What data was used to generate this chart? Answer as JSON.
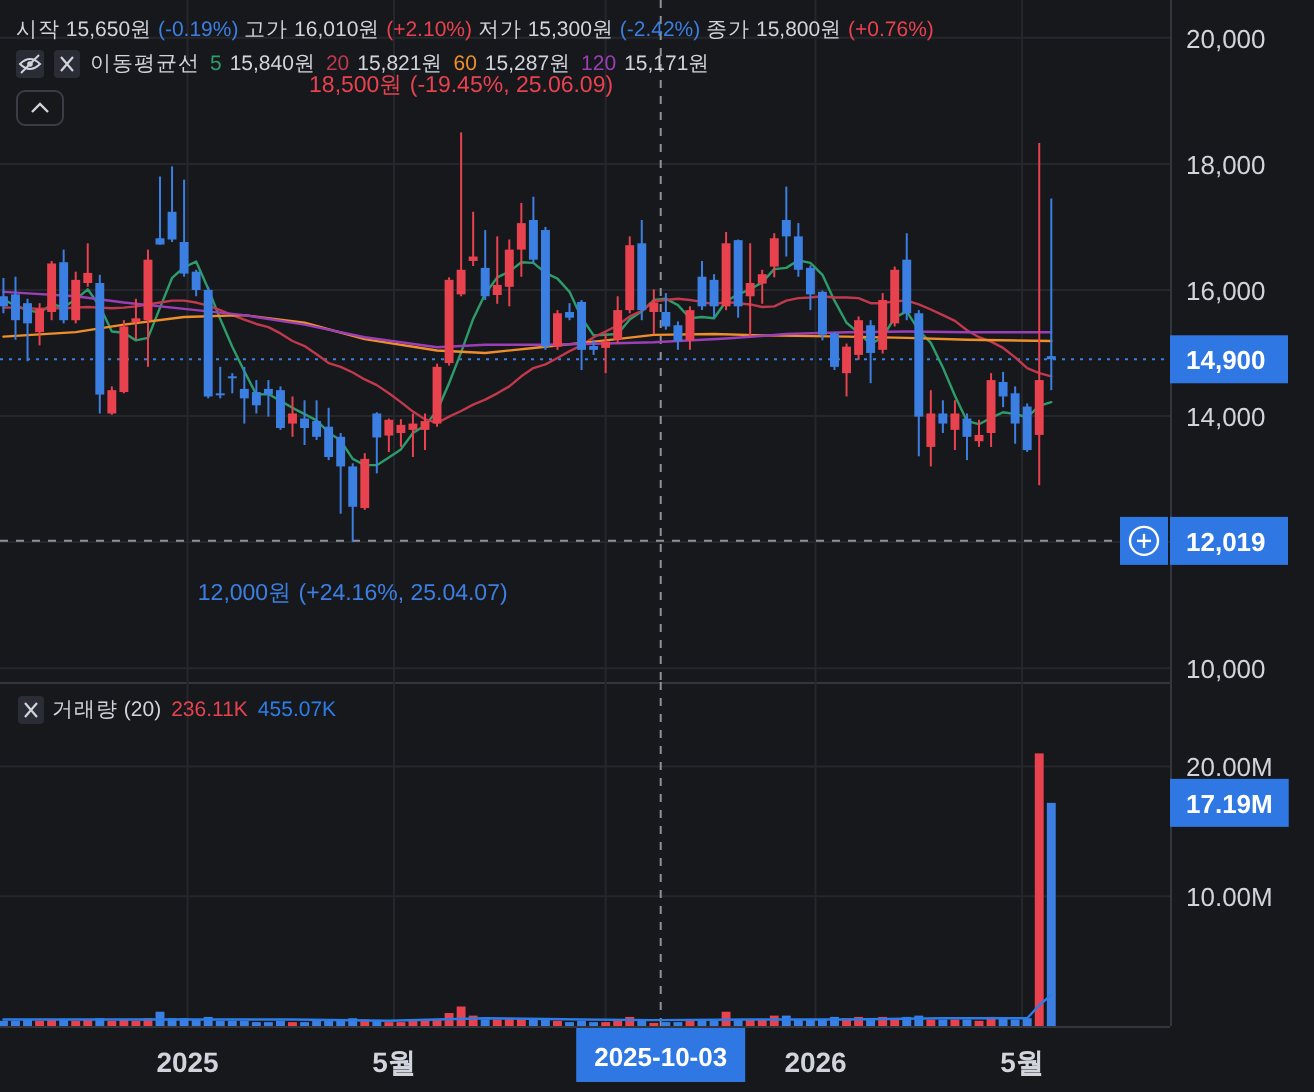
{
  "chart_data": [
    {
      "type": "candlestick",
      "subtitle": "시작 15,650원 (-0.19%) 고가 16,010원 (+2.10%) 저가 15,300원 (-2.42%) 종가 15,800원 (+0.76%)",
      "legend_title": "이동평균선",
      "legend": "top left",
      "grid": true,
      "tick_labels": "y",
      "xlim": [
        "2024-09-14",
        "2026-07-26"
      ],
      "ylim": [
        9780,
        20600
      ],
      "xticks": [
        {
          "value": "2025-01-01",
          "label": null
        },
        {
          "value": "2025-05-01",
          "label": null
        },
        {
          "value": "2025-09-01",
          "label": null
        },
        {
          "value": "2026-01-01",
          "label": null
        },
        {
          "value": "2026-05-01",
          "label": null
        }
      ],
      "yticks": [
        {
          "value": 10000,
          "label": "10,000"
        },
        {
          "value": 12000,
          "label": null
        },
        {
          "value": 14000,
          "label": "14,000"
        },
        {
          "value": 16000,
          "label": "16,000"
        },
        {
          "value": 18000,
          "label": "18,000"
        },
        {
          "value": 20000,
          "label": "20,000"
        }
      ],
      "x": [
        "2024-09-16",
        "2024-09-23",
        "2024-09-30",
        "2024-10-07",
        "2024-10-14",
        "2024-10-21",
        "2024-10-28",
        "2024-11-04",
        "2024-11-11",
        "2024-11-18",
        "2024-11-25",
        "2024-12-02",
        "2024-12-09",
        "2024-12-16",
        "2024-12-23",
        "2024-12-30",
        "2025-01-06",
        "2025-01-13",
        "2025-01-20",
        "2025-01-27",
        "2025-02-03",
        "2025-02-10",
        "2025-02-17",
        "2025-02-24",
        "2025-03-03",
        "2025-03-10",
        "2025-03-17",
        "2025-03-24",
        "2025-03-31",
        "2025-04-07",
        "2025-04-14",
        "2025-04-21",
        "2025-04-28",
        "2025-05-05",
        "2025-05-12",
        "2025-05-19",
        "2025-05-26",
        "2025-06-02",
        "2025-06-09",
        "2025-06-16",
        "2025-06-23",
        "2025-06-30",
        "2025-07-07",
        "2025-07-14",
        "2025-07-21",
        "2025-07-28",
        "2025-08-04",
        "2025-08-11",
        "2025-08-18",
        "2025-08-25",
        "2025-09-01",
        "2025-09-08",
        "2025-09-15",
        "2025-09-22",
        "2025-09-29",
        "2025-10-06",
        "2025-10-13",
        "2025-10-20",
        "2025-10-27",
        "2025-11-03",
        "2025-11-10",
        "2025-11-17",
        "2025-11-24",
        "2025-12-01",
        "2025-12-08",
        "2025-12-15",
        "2025-12-22",
        "2025-12-29",
        "2026-01-05",
        "2026-01-12",
        "2026-01-19",
        "2026-01-26",
        "2026-02-02",
        "2026-02-09",
        "2026-02-16",
        "2026-02-23",
        "2026-03-02",
        "2026-03-09",
        "2026-03-16",
        "2026-03-23",
        "2026-03-30",
        "2026-04-06",
        "2026-04-13",
        "2026-04-20",
        "2026-04-27",
        "2026-05-04",
        "2026-05-11",
        "2026-05-18"
      ],
      "ohlc": [
        [
          15900,
          16190,
          15630,
          15740
        ],
        [
          15930,
          16210,
          15210,
          15520
        ],
        [
          15790,
          15860,
          14870,
          15470
        ],
        [
          15330,
          15790,
          15120,
          15700
        ],
        [
          15650,
          16460,
          15520,
          16420
        ],
        [
          16440,
          16640,
          15470,
          15520
        ],
        [
          15520,
          16290,
          15470,
          16160
        ],
        [
          16110,
          16740,
          16050,
          16270
        ],
        [
          16110,
          16240,
          14040,
          14340
        ],
        [
          14040,
          14470,
          14020,
          14410
        ],
        [
          14380,
          15520,
          14360,
          15420
        ],
        [
          15490,
          15860,
          15210,
          15550
        ],
        [
          15520,
          16640,
          14780,
          16480
        ],
        [
          16820,
          17800,
          16720,
          16720
        ],
        [
          17240,
          17960,
          16760,
          16800
        ],
        [
          16760,
          17750,
          16210,
          16260
        ],
        [
          16290,
          16320,
          15900,
          16000
        ],
        [
          16000,
          16050,
          14280,
          14310
        ],
        [
          14360,
          14780,
          14280,
          14340
        ],
        [
          14630,
          14680,
          14360,
          14600
        ],
        [
          14430,
          14780,
          13880,
          14280
        ],
        [
          14380,
          14570,
          14040,
          14170
        ],
        [
          14430,
          14570,
          13990,
          14340
        ],
        [
          14410,
          14470,
          13780,
          13810
        ],
        [
          13880,
          14310,
          13670,
          14040
        ],
        [
          13960,
          14250,
          13540,
          13810
        ],
        [
          13920,
          14250,
          13620,
          13670
        ],
        [
          13830,
          14130,
          13300,
          13350
        ],
        [
          13670,
          13730,
          12450,
          13200
        ],
        [
          13200,
          13250,
          12000,
          12560
        ],
        [
          12540,
          13410,
          12510,
          13320
        ],
        [
          14040,
          14060,
          13090,
          13660
        ],
        [
          13690,
          13960,
          13430,
          13940
        ],
        [
          13730,
          13950,
          13510,
          13860
        ],
        [
          13780,
          14040,
          13350,
          13880
        ],
        [
          13780,
          14040,
          13460,
          13920
        ],
        [
          13880,
          14830,
          13830,
          14780
        ],
        [
          14840,
          16200,
          14800,
          16160
        ],
        [
          15930,
          18500,
          15900,
          16320
        ],
        [
          16460,
          17240,
          16380,
          16530
        ],
        [
          16350,
          16950,
          15840,
          15900
        ],
        [
          15920,
          16850,
          15780,
          16080
        ],
        [
          16050,
          16800,
          15740,
          16640
        ],
        [
          16640,
          17380,
          16210,
          17060
        ],
        [
          17110,
          17480,
          16420,
          16480
        ],
        [
          16950,
          17000,
          15050,
          15100
        ],
        [
          15100,
          15680,
          15050,
          15630
        ],
        [
          15650,
          15790,
          15520,
          15560
        ],
        [
          15810,
          15840,
          14730,
          15050
        ],
        [
          15110,
          15210,
          14970,
          15050
        ],
        [
          15080,
          15310,
          14680,
          15180
        ],
        [
          15210,
          15900,
          15150,
          15680
        ],
        [
          15680,
          16850,
          15630,
          16710
        ],
        [
          16740,
          17110,
          15520,
          15680
        ],
        [
          15650,
          16010,
          15300,
          15800
        ],
        [
          15650,
          15950,
          15370,
          15420
        ],
        [
          15440,
          15500,
          15050,
          15190
        ],
        [
          15200,
          15740,
          15050,
          15680
        ],
        [
          16210,
          16460,
          15680,
          15740
        ],
        [
          16160,
          16250,
          15560,
          15740
        ],
        [
          15740,
          16920,
          15680,
          16740
        ],
        [
          16790,
          16800,
          15560,
          15740
        ],
        [
          15900,
          16740,
          15260,
          16110
        ],
        [
          16100,
          16320,
          15780,
          16250
        ],
        [
          16370,
          16900,
          16200,
          16820
        ],
        [
          17110,
          17640,
          16530,
          16850
        ],
        [
          16850,
          17060,
          16210,
          16320
        ],
        [
          16350,
          16390,
          15680,
          15930
        ],
        [
          15970,
          15990,
          15200,
          15290
        ],
        [
          15310,
          15330,
          14730,
          14780
        ],
        [
          14680,
          15150,
          14310,
          15100
        ],
        [
          14970,
          15580,
          14890,
          15520
        ],
        [
          15440,
          15520,
          14520,
          15000
        ],
        [
          15050,
          15950,
          14990,
          15840
        ],
        [
          15470,
          16370,
          15420,
          16320
        ],
        [
          16480,
          16900,
          15520,
          15630
        ],
        [
          15630,
          15680,
          13360,
          13990
        ],
        [
          13510,
          14410,
          13200,
          14040
        ],
        [
          14040,
          14250,
          13730,
          13880
        ],
        [
          13780,
          14250,
          13460,
          14040
        ],
        [
          13960,
          14040,
          13300,
          13670
        ],
        [
          13600,
          13940,
          13510,
          13700
        ],
        [
          13730,
          14680,
          13510,
          14570
        ],
        [
          14540,
          14700,
          14140,
          14310
        ],
        [
          14360,
          14470,
          13560,
          13880
        ],
        [
          14150,
          14200,
          13430,
          13460
        ],
        [
          13700,
          18330,
          12900,
          14570
        ],
        [
          14950,
          17450,
          14410,
          14900
        ]
      ],
      "colors": [
        "#3c7fe2",
        "#3c7fe2",
        "#3c7fe2",
        "#e8424f",
        "#e8424f",
        "#3c7fe2",
        "#e8424f",
        "#e8424f",
        "#3c7fe2",
        "#e8424f",
        "#e8424f",
        "#e8424f",
        "#e8424f",
        "#3c7fe2",
        "#3c7fe2",
        "#3c7fe2",
        "#3c7fe2",
        "#3c7fe2",
        "#3c7fe2",
        "#3c7fe2",
        "#3c7fe2",
        "#3c7fe2",
        "#3c7fe2",
        "#3c7fe2",
        "#e8424f",
        "#3c7fe2",
        "#3c7fe2",
        "#3c7fe2",
        "#3c7fe2",
        "#3c7fe2",
        "#e8424f",
        "#3c7fe2",
        "#e8424f",
        "#e8424f",
        "#e8424f",
        "#e8424f",
        "#e8424f",
        "#e8424f",
        "#e8424f",
        "#e8424f",
        "#3c7fe2",
        "#e8424f",
        "#e8424f",
        "#e8424f",
        "#3c7fe2",
        "#3c7fe2",
        "#e8424f",
        "#3c7fe2",
        "#3c7fe2",
        "#3c7fe2",
        "#e8424f",
        "#e8424f",
        "#e8424f",
        "#3c7fe2",
        "#e8424f",
        "#3c7fe2",
        "#3c7fe2",
        "#e8424f",
        "#3c7fe2",
        "#3c7fe2",
        "#e8424f",
        "#3c7fe2",
        "#e8424f",
        "#e8424f",
        "#e8424f",
        "#3c7fe2",
        "#3c7fe2",
        "#3c7fe2",
        "#3c7fe2",
        "#3c7fe2",
        "#e8424f",
        "#e8424f",
        "#3c7fe2",
        "#e8424f",
        "#e8424f",
        "#3c7fe2",
        "#3c7fe2",
        "#e8424f",
        "#3c7fe2",
        "#e8424f",
        "#3c7fe2",
        "#e8424f",
        "#e8424f",
        "#3c7fe2",
        "#3c7fe2",
        "#3c7fe2",
        "#e8424f",
        "#3c7fe2"
      ],
      "series": [
        {
          "name": "5",
          "type": "line",
          "color": "#2e9c6a",
          "values": [
            15850,
            15750,
            15680,
            15640,
            15770,
            15730,
            15850,
            16010,
            15740,
            15340,
            15320,
            15200,
            15240,
            15720,
            16190,
            16360,
            16450,
            16020,
            15540,
            15100,
            14710,
            14340,
            14350,
            14240,
            14130,
            14030,
            13930,
            13740,
            13610,
            13320,
            13220,
            13220,
            13340,
            13470,
            13730,
            13850,
            14080,
            14520,
            15010,
            15540,
            15940,
            16200,
            16290,
            16440,
            16430,
            16270,
            16180,
            15970,
            15560,
            15280,
            15290,
            15300,
            15530,
            15660,
            15840,
            15860,
            15760,
            15550,
            15570,
            15550,
            15820,
            15930,
            16010,
            16120,
            16330,
            16350,
            16470,
            16430,
            16240,
            15830,
            15480,
            15320,
            15140,
            15250,
            15560,
            15660,
            15360,
            15160,
            14770,
            14320,
            13920,
            13870,
            13970,
            14060,
            14030,
            13980,
            14160,
            14220
          ]
        },
        {
          "name": "20",
          "type": "line",
          "color": "#c0394c",
          "values": [
            15720,
            15720,
            15710,
            15700,
            15710,
            15710,
            15720,
            15730,
            15720,
            15710,
            15720,
            15740,
            15770,
            15800,
            15830,
            15830,
            15800,
            15750,
            15680,
            15600,
            15530,
            15460,
            15410,
            15310,
            15190,
            15110,
            14980,
            14840,
            14780,
            14690,
            14580,
            14490,
            14360,
            14220,
            14070,
            13950,
            13890,
            13990,
            14080,
            14180,
            14260,
            14360,
            14470,
            14630,
            14760,
            14820,
            14920,
            15030,
            15120,
            15250,
            15340,
            15440,
            15580,
            15670,
            15821,
            15840,
            15860,
            15840,
            15810,
            15770,
            15810,
            15790,
            15770,
            15730,
            15740,
            15830,
            15870,
            15880,
            15900,
            15880,
            15880,
            15870,
            15790,
            15790,
            15820,
            15830,
            15770,
            15690,
            15600,
            15510,
            15360,
            15250,
            15180,
            15080,
            14930,
            14760,
            14680,
            14630
          ]
        },
        {
          "name": "60",
          "type": "line",
          "color": "#ef8f2a",
          "x": [
            "2024-09-16",
            "2024-10-28",
            "2024-11-25",
            "2024-12-30",
            "2025-02-03",
            "2025-03-10",
            "2025-04-14",
            "2025-05-26",
            "2025-06-23",
            "2025-07-21",
            "2025-09-01",
            "2025-09-29",
            "2025-11-03",
            "2025-12-01",
            "2026-01-19",
            "2026-02-23",
            "2026-03-30",
            "2026-05-18"
          ],
          "values": [
            15260,
            15330,
            15450,
            15570,
            15600,
            15480,
            15220,
            15040,
            15000,
            15080,
            15200,
            15287,
            15300,
            15280,
            15260,
            15240,
            15210,
            15190
          ]
        },
        {
          "name": "120",
          "type": "line",
          "color": "#9c3fb6",
          "x": [
            "2024-09-16",
            "2024-10-28",
            "2024-11-25",
            "2024-12-30",
            "2025-02-03",
            "2025-03-10",
            "2025-04-14",
            "2025-05-26",
            "2025-06-23",
            "2025-07-28",
            "2025-09-01",
            "2025-09-29",
            "2025-11-10",
            "2025-12-15",
            "2026-01-19",
            "2026-02-23",
            "2026-03-30",
            "2026-05-18"
          ],
          "values": [
            15970,
            15900,
            15800,
            15700,
            15600,
            15450,
            15250,
            15090,
            15130,
            15130,
            15150,
            15171,
            15230,
            15300,
            15330,
            15340,
            15330,
            15330
          ]
        }
      ],
      "ref_lines": [
        {
          "axis": "y",
          "value": 14900,
          "color": "#3c7fe2",
          "line_style": "dotted"
        },
        {
          "axis": "y",
          "value": 12019,
          "color": "#8e919b",
          "line_style": "dashed"
        },
        {
          "axis": "x",
          "value": "2025-10-03",
          "color": "#8e919b",
          "line_style": "dashed"
        }
      ],
      "annotations": [
        {
          "text": "18,500원 (-19.45%, 25.06.09)",
          "x": "2025-06-09",
          "y": 18500
        },
        {
          "text": "12,000원 (+24.16%, 25.04.07)",
          "x": "2025-04-07",
          "y": 12000
        },
        "15,840원",
        "15,821원",
        "15,287원",
        "15,171원",
        "14,900",
        "12,019"
      ]
    },
    {
      "type": "bar",
      "legend_title": "거래량 (20)",
      "grid": true,
      "xlim": [
        "2024-09-14",
        "2026-07-26"
      ],
      "ylim": [
        0,
        26.5
      ],
      "xticks": [
        {
          "value": "2025-01-01",
          "label": "2025"
        },
        {
          "value": "2025-05-01",
          "label": "5월"
        },
        {
          "value": "2025-09-01",
          "label": null
        },
        {
          "value": "2026-01-01",
          "label": "2026"
        },
        {
          "value": "2026-05-01",
          "label": "5월"
        }
      ],
      "yticks": [
        {
          "value": 10,
          "label": "10.00M"
        },
        {
          "value": 20,
          "label": "20.00M"
        }
      ],
      "x": [
        "2024-09-16",
        "2024-09-23",
        "2024-09-30",
        "2024-10-07",
        "2024-10-14",
        "2024-10-21",
        "2024-10-28",
        "2024-11-04",
        "2024-11-11",
        "2024-11-18",
        "2024-11-25",
        "2024-12-02",
        "2024-12-09",
        "2024-12-16",
        "2024-12-23",
        "2024-12-30",
        "2025-01-06",
        "2025-01-13",
        "2025-01-20",
        "2025-01-27",
        "2025-02-03",
        "2025-02-10",
        "2025-02-17",
        "2025-02-24",
        "2025-03-03",
        "2025-03-10",
        "2025-03-17",
        "2025-03-24",
        "2025-03-31",
        "2025-04-07",
        "2025-04-14",
        "2025-04-21",
        "2025-04-28",
        "2025-05-05",
        "2025-05-12",
        "2025-05-19",
        "2025-05-26",
        "2025-06-02",
        "2025-06-09",
        "2025-06-16",
        "2025-06-23",
        "2025-06-30",
        "2025-07-07",
        "2025-07-14",
        "2025-07-21",
        "2025-07-28",
        "2025-08-04",
        "2025-08-11",
        "2025-08-18",
        "2025-08-25",
        "2025-09-01",
        "2025-09-08",
        "2025-09-15",
        "2025-09-22",
        "2025-09-29",
        "2025-10-06",
        "2025-10-13",
        "2025-10-20",
        "2025-10-27",
        "2025-11-03",
        "2025-11-10",
        "2025-11-17",
        "2025-11-24",
        "2025-12-01",
        "2025-12-08",
        "2025-12-15",
        "2025-12-22",
        "2025-12-29",
        "2026-01-05",
        "2026-01-12",
        "2026-01-19",
        "2026-01-26",
        "2026-02-02",
        "2026-02-09",
        "2026-02-16",
        "2026-02-23",
        "2026-03-02",
        "2026-03-09",
        "2026-03-16",
        "2026-03-23",
        "2026-03-30",
        "2026-04-06",
        "2026-04-13",
        "2026-04-20",
        "2026-04-27",
        "2026-05-04",
        "2026-05-11",
        "2026-05-18"
      ],
      "series": [
        {
          "values": [
            0.4,
            0.4,
            0.5,
            0.4,
            0.5,
            0.5,
            0.4,
            0.5,
            0.6,
            0.4,
            0.5,
            0.4,
            0.6,
            1.1,
            0.6,
            0.6,
            0.5,
            0.7,
            0.4,
            0.4,
            0.4,
            0.3,
            0.3,
            0.4,
            0.3,
            0.3,
            0.4,
            0.4,
            0.5,
            0.6,
            0.5,
            0.4,
            0.3,
            0.3,
            0.4,
            0.4,
            0.5,
            1.0,
            1.5,
            0.8,
            0.5,
            0.5,
            0.6,
            0.6,
            0.5,
            0.5,
            0.4,
            0.3,
            0.4,
            0.3,
            0.3,
            0.5,
            0.7,
            0.5,
            0.23611,
            0.3,
            0.3,
            0.4,
            0.4,
            0.4,
            1.1,
            0.5,
            0.5,
            0.5,
            0.8,
            0.8,
            0.5,
            0.5,
            0.5,
            0.7,
            0.6,
            0.7,
            0.6,
            0.7,
            0.6,
            0.7,
            0.8,
            0.5,
            0.5,
            0.5,
            0.5,
            0.4,
            0.7,
            0.6,
            0.5,
            0.6,
            21.0,
            17.19
          ],
          "colors": [
            "#3c7fe2",
            "#3c7fe2",
            "#3c7fe2",
            "#e8424f",
            "#e8424f",
            "#3c7fe2",
            "#e8424f",
            "#e8424f",
            "#3c7fe2",
            "#e8424f",
            "#e8424f",
            "#e8424f",
            "#e8424f",
            "#3c7fe2",
            "#3c7fe2",
            "#3c7fe2",
            "#3c7fe2",
            "#3c7fe2",
            "#3c7fe2",
            "#3c7fe2",
            "#3c7fe2",
            "#3c7fe2",
            "#3c7fe2",
            "#3c7fe2",
            "#e8424f",
            "#3c7fe2",
            "#3c7fe2",
            "#3c7fe2",
            "#3c7fe2",
            "#3c7fe2",
            "#e8424f",
            "#3c7fe2",
            "#e8424f",
            "#e8424f",
            "#e8424f",
            "#e8424f",
            "#e8424f",
            "#e8424f",
            "#e8424f",
            "#e8424f",
            "#3c7fe2",
            "#e8424f",
            "#e8424f",
            "#e8424f",
            "#3c7fe2",
            "#3c7fe2",
            "#e8424f",
            "#3c7fe2",
            "#3c7fe2",
            "#3c7fe2",
            "#e8424f",
            "#e8424f",
            "#e8424f",
            "#3c7fe2",
            "#e8424f",
            "#3c7fe2",
            "#3c7fe2",
            "#e8424f",
            "#3c7fe2",
            "#3c7fe2",
            "#e8424f",
            "#3c7fe2",
            "#e8424f",
            "#e8424f",
            "#e8424f",
            "#3c7fe2",
            "#3c7fe2",
            "#3c7fe2",
            "#3c7fe2",
            "#3c7fe2",
            "#e8424f",
            "#e8424f",
            "#3c7fe2",
            "#e8424f",
            "#e8424f",
            "#3c7fe2",
            "#3c7fe2",
            "#e8424f",
            "#3c7fe2",
            "#e8424f",
            "#3c7fe2",
            "#e8424f",
            "#e8424f",
            "#3c7fe2",
            "#3c7fe2",
            "#3c7fe2",
            "#e8424f",
            "#3c7fe2"
          ]
        },
        {
          "type": "line",
          "color": "#2b7de9",
          "x": [
            "2024-09-16",
            "2024-11-11",
            "2025-01-06",
            "2025-03-03",
            "2025-04-28",
            "2025-06-23",
            "2025-08-18",
            "2025-09-29",
            "2025-11-24",
            "2026-01-19",
            "2026-03-16",
            "2026-05-04",
            "2026-05-11",
            "2026-05-18"
          ],
          "values": [
            0.5,
            0.5,
            0.5,
            0.5,
            0.4,
            0.6,
            0.5,
            0.45507,
            0.5,
            0.5,
            0.6,
            0.6,
            1.6,
            2.4
          ]
        }
      ],
      "ref_lines": [
        {
          "axis": "x",
          "value": "2025-10-03",
          "label": "2025-10-03",
          "color": "#8e919b",
          "line_style": "dashed"
        }
      ],
      "annotations": [
        "236.11K",
        "455.07K",
        "17.19M"
      ]
    }
  ]
}
